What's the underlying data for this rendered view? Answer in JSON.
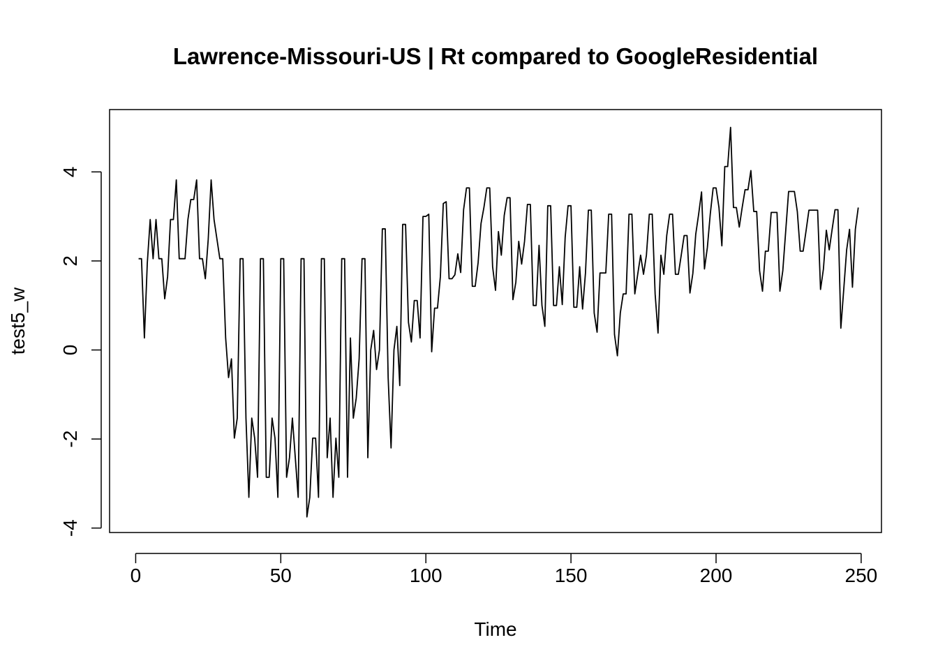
{
  "chart_data": {
    "type": "line",
    "title": "Lawrence-Missouri-US | Rt compared to GoogleResidential",
    "xlabel": "Time",
    "ylabel": "test5_w",
    "xlim": [
      -9,
      257
    ],
    "ylim": [
      -4.1,
      5.4
    ],
    "x_ticks": [
      0,
      50,
      100,
      150,
      200,
      250
    ],
    "y_ticks": [
      -4,
      -2,
      0,
      2,
      4
    ],
    "x_tick_labels": [
      "0",
      "50",
      "100",
      "150",
      "200",
      "250"
    ],
    "y_tick_labels": [
      "-4",
      "-2",
      "0",
      "2",
      "4"
    ],
    "grid": false,
    "line_color": "#000000",
    "series": [
      {
        "x_start": 1,
        "x_step": 1,
        "values": [
          2.05,
          2.05,
          0.27,
          1.95,
          2.93,
          2.05,
          2.93,
          2.05,
          2.05,
          1.15,
          1.65,
          2.93,
          2.93,
          3.82,
          2.05,
          2.05,
          2.05,
          2.93,
          3.38,
          3.38,
          3.82,
          2.05,
          2.05,
          1.6,
          2.49,
          3.82,
          2.93,
          2.49,
          2.05,
          2.05,
          0.27,
          -0.62,
          -0.2,
          -1.98,
          -1.53,
          2.05,
          2.05,
          -1.53,
          -3.31,
          -1.53,
          -1.98,
          -2.86,
          2.05,
          2.05,
          -2.86,
          -2.86,
          -1.53,
          -1.98,
          -3.31,
          2.05,
          2.05,
          -2.86,
          -2.42,
          -1.53,
          -2.42,
          -3.31,
          2.05,
          2.05,
          -3.75,
          -3.31,
          -1.98,
          -1.98,
          -3.31,
          2.05,
          2.05,
          -2.42,
          -1.53,
          -3.31,
          -1.98,
          -2.86,
          2.05,
          2.05,
          -2.86,
          0.27,
          -1.53,
          -1.08,
          -0.2,
          2.05,
          2.05,
          -2.42,
          0.0,
          0.44,
          -0.44,
          0.0,
          2.72,
          2.72,
          -0.62,
          -2.2,
          0.0,
          0.53,
          -0.8,
          2.82,
          2.82,
          0.62,
          0.18,
          1.11,
          1.11,
          0.27,
          3.0,
          3.0,
          3.05,
          -0.04,
          0.94,
          0.94,
          1.65,
          3.29,
          3.33,
          1.6,
          1.6,
          1.69,
          2.16,
          1.74,
          3.15,
          3.64,
          3.64,
          1.43,
          1.43,
          1.96,
          2.84,
          3.2,
          3.64,
          3.64,
          1.87,
          1.34,
          2.66,
          2.13,
          3.02,
          3.42,
          3.42,
          1.13,
          1.52,
          2.44,
          1.93,
          2.44,
          3.27,
          3.27,
          1.0,
          1.0,
          2.35,
          1.0,
          0.53,
          3.24,
          3.24,
          1.0,
          1.0,
          1.87,
          1.02,
          2.53,
          3.24,
          3.24,
          0.96,
          0.96,
          1.87,
          0.92,
          1.73,
          3.14,
          3.14,
          0.83,
          0.4,
          1.73,
          1.73,
          1.73,
          3.05,
          3.05,
          0.35,
          -0.13,
          0.83,
          1.26,
          1.26,
          3.05,
          3.05,
          1.26,
          1.7,
          2.13,
          1.7,
          2.13,
          3.05,
          3.05,
          1.26,
          0.38,
          2.13,
          1.7,
          2.57,
          3.05,
          3.05,
          1.7,
          1.7,
          2.13,
          2.57,
          2.57,
          1.28,
          1.72,
          2.6,
          3.05,
          3.55,
          1.82,
          2.3,
          3.05,
          3.64,
          3.64,
          3.2,
          2.34,
          4.12,
          4.12,
          5.0,
          3.2,
          3.2,
          2.76,
          3.2,
          3.6,
          3.6,
          4.03,
          3.11,
          3.11,
          1.78,
          1.32,
          2.22,
          2.22,
          3.09,
          3.09,
          3.09,
          1.32,
          1.78,
          2.67,
          3.56,
          3.56,
          3.56,
          3.11,
          2.22,
          2.22,
          2.67,
          3.14,
          3.14,
          3.14,
          3.14,
          1.36,
          1.82,
          2.69,
          2.25,
          2.71,
          3.15,
          3.15,
          0.49,
          1.36,
          2.25,
          2.71,
          1.41,
          2.71,
          3.2
        ]
      }
    ]
  }
}
